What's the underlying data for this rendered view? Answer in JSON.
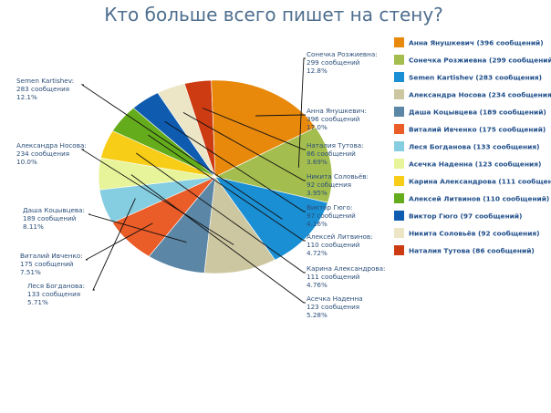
{
  "chart_data": {
    "type": "pie",
    "title": "Кто больше всего пишет на стену?",
    "legend_position": "right",
    "slices": [
      {
        "legend": "Анна Янушкевич (396 сообщений)",
        "label_lines": [
          "Анна Янушкевич:",
          "396 сообщений",
          "17.0%"
        ],
        "value": 396,
        "percent": 17.0,
        "color": "#e8890c"
      },
      {
        "legend": "Сонечка Розжиевна (299 сообщений)",
        "label_lines": [
          "Сонечка Розжиевна:",
          "299 сообщений",
          "12.8%"
        ],
        "value": 299,
        "percent": 12.8,
        "color": "#a3be4e"
      },
      {
        "legend": "Semen Kartishev (283 сообщения)",
        "label_lines": [
          "Semen Kartishev:",
          "283 сообщения",
          "12.1%"
        ],
        "value": 283,
        "percent": 12.1,
        "color": "#1a8fd4"
      },
      {
        "legend": "Александра Носова (234 сообщения)",
        "label_lines": [
          "Александра Носова:",
          "234 сообщения",
          "10.0%"
        ],
        "value": 234,
        "percent": 10.0,
        "color": "#cdc7a1"
      },
      {
        "legend": "Даша Коцывцева (189 сообщений)",
        "label_lines": [
          "Даша Коцывцева:",
          "189 сообщений",
          "8.11%"
        ],
        "value": 189,
        "percent": 8.11,
        "color": "#5b86a5"
      },
      {
        "legend": "Виталий Ивченко (175 сообщений)",
        "label_lines": [
          "Виталий Ивченко:",
          "175 сообщений",
          "7.51%"
        ],
        "value": 175,
        "percent": 7.51,
        "color": "#ea5c28"
      },
      {
        "legend": "Леся Богданова (133 сообщения)",
        "label_lines": [
          "Леся Богданова:",
          "133 сообщения",
          "5.71%"
        ],
        "value": 133,
        "percent": 5.71,
        "color": "#85cde0"
      },
      {
        "legend": "Асечка Наденна (123 сообщения)",
        "label_lines": [
          "Асечка Наденна",
          "123 сообщения",
          "5.28%"
        ],
        "value": 123,
        "percent": 5.28,
        "color": "#e7f49a"
      },
      {
        "legend": "Карина Александрова (111 сообщений)",
        "label_lines": [
          "Карина Александрова:",
          "111 сообщений",
          "4.76%"
        ],
        "value": 111,
        "percent": 4.76,
        "color": "#f7cd17"
      },
      {
        "legend": "Алексей Литвинов (110 сообщений)",
        "label_lines": [
          "Алексей Литвинов:",
          "110 сообщений",
          "4.72%"
        ],
        "value": 110,
        "percent": 4.72,
        "color": "#64ac1b"
      },
      {
        "legend": "Виктор Гюго (97 сообщений)",
        "label_lines": [
          "Виктор Гюго:",
          "97 сообщений",
          "4.16%"
        ],
        "value": 97,
        "percent": 4.16,
        "color": "#0e5bb0"
      },
      {
        "legend": "Никита Соловьёв (92 сообщения)",
        "label_lines": [
          "Никита Соловьёв:",
          "92 собщения",
          "3.95%"
        ],
        "value": 92,
        "percent": 3.95,
        "color": "#ece6c6"
      },
      {
        "legend": "Наталия Тутова (86 сообщений)",
        "label_lines": [
          "Наталия Тутова:",
          "86 сообщений",
          "3.69%"
        ],
        "value": 86,
        "percent": 3.69,
        "color": "#cc3b11"
      }
    ]
  }
}
